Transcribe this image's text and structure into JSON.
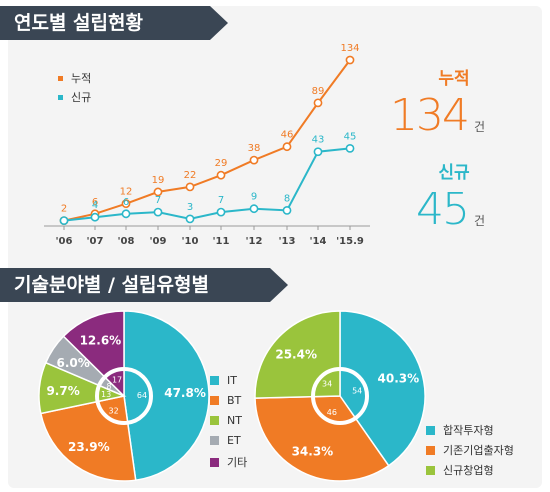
{
  "section1": {
    "title": "연도별 설립현황"
  },
  "section2": {
    "title": "기술분야별 / 설립유형별"
  },
  "summary": {
    "cumulative": {
      "label": "누적",
      "value": "134",
      "unit": "건",
      "color": "#f07b25"
    },
    "new": {
      "label": "신규",
      "value": "45",
      "unit": "건",
      "color": "#2bb7c9"
    }
  },
  "colors": {
    "orange": "#f07b25",
    "teal": "#2bb7c9",
    "green": "#9ac43c",
    "gray": "#a5abb2",
    "purple": "#8b2b7e",
    "banner": "#3a4654"
  },
  "chart_data": [
    {
      "type": "line",
      "categories": [
        "'06",
        "'07",
        "'08",
        "'09",
        "'10",
        "'11",
        "'12",
        "'13",
        "'14",
        "'15.9"
      ],
      "series": [
        {
          "name": "누적",
          "values": [
            2,
            6,
            12,
            19,
            22,
            29,
            38,
            46,
            89,
            134
          ],
          "color": "#f07b25"
        },
        {
          "name": "신규",
          "values": [
            2,
            4,
            6,
            7,
            3,
            7,
            9,
            8,
            43,
            45
          ],
          "color": "#2bb7c9"
        }
      ],
      "legend_position": "top-left"
    },
    {
      "type": "pie",
      "labels": [
        "IT",
        "BT",
        "NT",
        "ET",
        "기타"
      ],
      "percentages": [
        "47.8%",
        "23.9%",
        "9.7%",
        "6.0%",
        "12.6%"
      ],
      "counts": [
        64,
        32,
        13,
        8,
        17
      ],
      "values": [
        47.8,
        23.9,
        9.7,
        6.0,
        12.6
      ],
      "colors": [
        "#2bb7c9",
        "#f07b25",
        "#9ac43c",
        "#a5abb2",
        "#8b2b7e"
      ]
    },
    {
      "type": "pie",
      "labels": [
        "합작투자형",
        "기존기업출자형",
        "신규창업형"
      ],
      "percentages": [
        "40.3%",
        "34.3%",
        "25.4%"
      ],
      "counts": [
        54,
        46,
        34
      ],
      "values": [
        40.3,
        34.3,
        25.4
      ],
      "colors": [
        "#2bb7c9",
        "#f07b25",
        "#9ac43c"
      ]
    }
  ]
}
